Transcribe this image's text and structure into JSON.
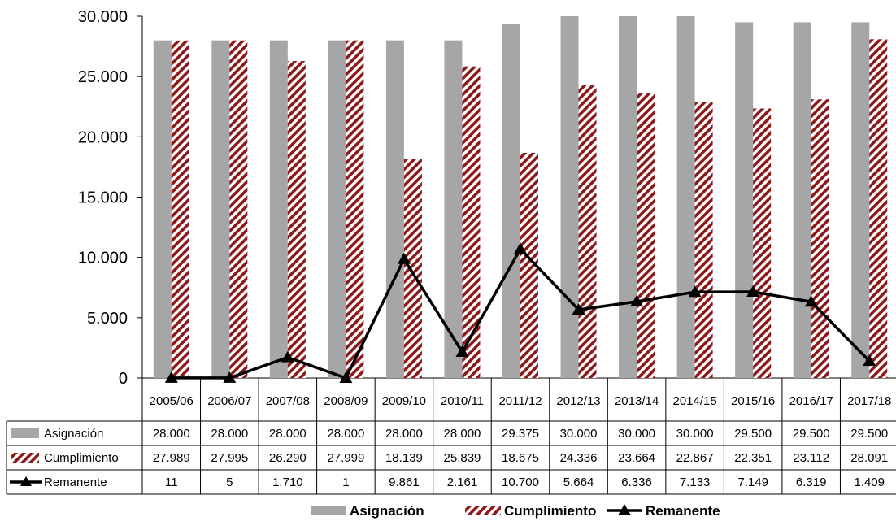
{
  "chart_data": {
    "type": "bar",
    "categories": [
      "2005/06",
      "2006/07",
      "2007/08",
      "2008/09",
      "2009/10",
      "2010/11",
      "2011/12",
      "2012/13",
      "2013/14",
      "2014/15",
      "2015/16",
      "2016/17",
      "2017/18"
    ],
    "ylim": [
      0,
      30000
    ],
    "yticks": [
      "0",
      "5.000",
      "10.000",
      "15.000",
      "20.000",
      "25.000",
      "30.000"
    ],
    "ytick_values": [
      0,
      5000,
      10000,
      15000,
      20000,
      25000,
      30000
    ],
    "series": [
      {
        "name": "Asignación",
        "kind": "bar",
        "color": "#a6a6a6",
        "values": [
          28000,
          28000,
          28000,
          28000,
          28000,
          28000,
          29375,
          30000,
          30000,
          30000,
          29500,
          29500,
          29500
        ],
        "labels": [
          "28.000",
          "28.000",
          "28.000",
          "28.000",
          "28.000",
          "28.000",
          "29.375",
          "30.000",
          "30.000",
          "30.000",
          "29.500",
          "29.500",
          "29.500"
        ]
      },
      {
        "name": "Cumplimiento",
        "kind": "bar-hatched",
        "color": "#8b1a1a",
        "values": [
          27989,
          27995,
          26290,
          27999,
          18139,
          25839,
          18675,
          24336,
          23664,
          22867,
          22351,
          23112,
          28091
        ],
        "labels": [
          "27.989",
          "27.995",
          "26.290",
          "27.999",
          "18.139",
          "25.839",
          "18.675",
          "24.336",
          "23.664",
          "22.867",
          "22.351",
          "23.112",
          "28.091"
        ]
      },
      {
        "name": "Remanente",
        "kind": "line",
        "color": "#000000",
        "values": [
          11,
          5,
          1710,
          1,
          9861,
          2161,
          10700,
          5664,
          6336,
          7133,
          7149,
          6319,
          1409
        ],
        "labels": [
          "11",
          "5",
          "1.710",
          "1",
          "9.861",
          "2.161",
          "10.700",
          "5.664",
          "6.336",
          "7.133",
          "7.149",
          "6.319",
          "1.409"
        ]
      }
    ],
    "grid": false,
    "legend_position": "bottom"
  }
}
